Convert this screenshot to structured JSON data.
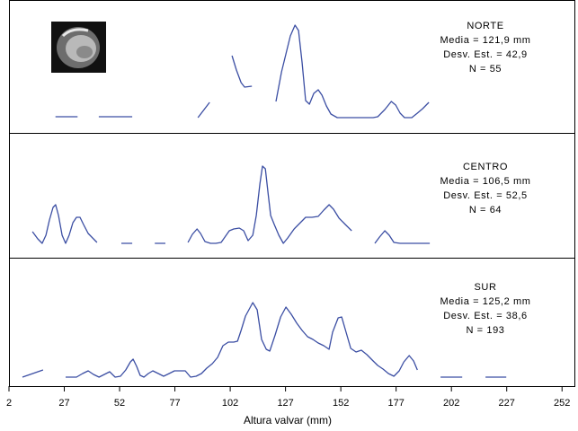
{
  "chart_data": [
    {
      "type": "line",
      "color": "#3b4ea3",
      "xlim": [
        2,
        258
      ],
      "ylim": [
        0,
        12
      ],
      "annotations": [
        "NORTE",
        "Media = 121,9 mm",
        "Desv. Est. = 42,9",
        "N = 55"
      ],
      "x": [
        23,
        33,
        null,
        42.6,
        57.7,
        null,
        87.4,
        92.7,
        null,
        102.8,
        104.8,
        106.9,
        108.5,
        111.8,
        null,
        122.7,
        125.2,
        127.2,
        129.2,
        131.3,
        132.9,
        134.5,
        136.1,
        137.8,
        139.8,
        141.8,
        143.5,
        145.5,
        147.5,
        150.4,
        154.4,
        160.5,
        166.6,
        168.7,
        171.9,
        174.8,
        176.8,
        178.8,
        180.8,
        184.1,
        186.6,
        189.0,
        191.8
      ],
      "values": [
        0.2,
        0.2,
        null,
        0.2,
        0.2,
        null,
        0.1,
        1.8,
        null,
        7.0,
        5.4,
        4.0,
        3.5,
        3.6,
        null,
        1.9,
        5.2,
        7.2,
        9.2,
        10.4,
        9.8,
        6.2,
        2.0,
        1.6,
        2.8,
        3.2,
        2.6,
        1.4,
        0.5,
        0.1,
        0.1,
        0.1,
        0.1,
        0.2,
        1.0,
        1.9,
        1.5,
        0.6,
        0.1,
        0.1,
        0.6,
        1.1,
        1.8
      ]
    },
    {
      "type": "line",
      "color": "#3b4ea3",
      "xlim": [
        2,
        258
      ],
      "ylim": [
        0,
        12
      ],
      "annotations": [
        "CENTRO",
        "Media = 106,5 mm",
        "Desv. Est. = 52,5",
        "N = 64"
      ],
      "x": [
        12.6,
        15.0,
        17.0,
        18.7,
        20.3,
        21.9,
        23.1,
        24.4,
        26.0,
        27.6,
        29.2,
        30.9,
        32.5,
        34.1,
        35.7,
        37.8,
        39.8,
        41.8,
        null,
        52.8,
        57.7,
        null,
        67.9,
        72.7,
        null,
        82.9,
        84.9,
        87.0,
        88.6,
        90.6,
        93.1,
        95.5,
        97.9,
        99.6,
        101.6,
        103.6,
        106.1,
        108.1,
        110.1,
        112.2,
        113.8,
        115.4,
        116.6,
        117.9,
        119.1,
        120.3,
        121.9,
        124.0,
        126.0,
        128.0,
        130.9,
        133.7,
        136.1,
        139.0,
        141.8,
        144.3,
        146.7,
        148.7,
        151.2,
        154.0,
        156.9,
        null,
        167.4,
        169.5,
        171.9,
        173.9,
        176.0,
        178.8,
        184.9,
        192.2
      ],
      "values": [
        1.4,
        0.6,
        0.1,
        1.0,
        2.7,
        4.1,
        4.4,
        3.2,
        1.0,
        0.1,
        1.0,
        2.4,
        3.0,
        3.0,
        2.2,
        1.2,
        0.7,
        0.2,
        null,
        0.1,
        0.1,
        null,
        0.1,
        0.1,
        null,
        0.2,
        1.1,
        1.7,
        1.2,
        0.3,
        0.1,
        0.1,
        0.2,
        0.8,
        1.5,
        1.7,
        1.8,
        1.5,
        0.4,
        1.0,
        3.2,
        6.7,
        8.7,
        8.4,
        5.7,
        3.2,
        2.2,
        1.0,
        0.1,
        0.7,
        1.7,
        2.4,
        3.0,
        3.0,
        3.1,
        3.8,
        4.4,
        3.9,
        2.9,
        2.2,
        1.5,
        null,
        0.1,
        0.8,
        1.5,
        1.0,
        0.2,
        0.1,
        0.1,
        0.1
      ]
    },
    {
      "type": "line",
      "color": "#3b4ea3",
      "xlim": [
        2,
        258
      ],
      "ylim": [
        0,
        12
      ],
      "annotations": [
        "SUR",
        "Media = 125,2 mm",
        "Desv. Est. = 38,6",
        "N = 193"
      ],
      "xlabel": "Altura valvar (mm)",
      "xticks": [
        2,
        27,
        52,
        77,
        102,
        127,
        152,
        177,
        202,
        227,
        252
      ],
      "x": [
        8.1,
        17.4,
        null,
        27.6,
        32.5,
        35.3,
        37.8,
        40.2,
        42.7,
        45.1,
        47.5,
        50.0,
        52.4,
        54.8,
        56.9,
        58.1,
        59.7,
        61.3,
        63.0,
        65.0,
        67.0,
        69.5,
        71.9,
        74.4,
        76.8,
        79.2,
        81.7,
        84.1,
        86.6,
        89.0,
        91.4,
        93.9,
        96.3,
        98.7,
        101.2,
        103.6,
        105.3,
        106.9,
        108.9,
        112.2,
        114.2,
        116.2,
        118.3,
        119.9,
        122.3,
        124.8,
        127.2,
        129.6,
        132.1,
        134.5,
        137.0,
        139.4,
        141.8,
        144.3,
        146.7,
        148.3,
        150.8,
        152.4,
        154.4,
        156.5,
        158.9,
        161.3,
        163.8,
        166.2,
        168.7,
        171.1,
        173.5,
        176.0,
        178.4,
        180.5,
        182.9,
        184.9,
        186.6,
        null,
        197.1,
        206.9,
        null,
        217.4,
        226.8
      ],
      "values": [
        0.1,
        0.9,
        null,
        0.1,
        0.1,
        0.5,
        0.8,
        0.4,
        0.1,
        0.4,
        0.7,
        0.1,
        0.2,
        0.9,
        1.8,
        2.1,
        1.3,
        0.3,
        0.1,
        0.5,
        0.8,
        0.5,
        0.2,
        0.5,
        0.8,
        0.8,
        0.8,
        0.1,
        0.2,
        0.5,
        1.1,
        1.6,
        2.3,
        3.6,
        4.0,
        4.0,
        4.1,
        5.3,
        6.9,
        8.4,
        7.6,
        4.3,
        3.2,
        3.0,
        4.8,
        6.8,
        7.9,
        7.1,
        6.1,
        5.3,
        4.6,
        4.3,
        3.9,
        3.6,
        3.2,
        5.1,
        6.7,
        6.8,
        5.1,
        3.3,
        2.9,
        3.1,
        2.6,
        2.0,
        1.4,
        1.0,
        0.5,
        0.2,
        0.8,
        1.8,
        2.5,
        1.9,
        0.9,
        null,
        0.1,
        0.1,
        null,
        0.1,
        0.1
      ]
    }
  ]
}
